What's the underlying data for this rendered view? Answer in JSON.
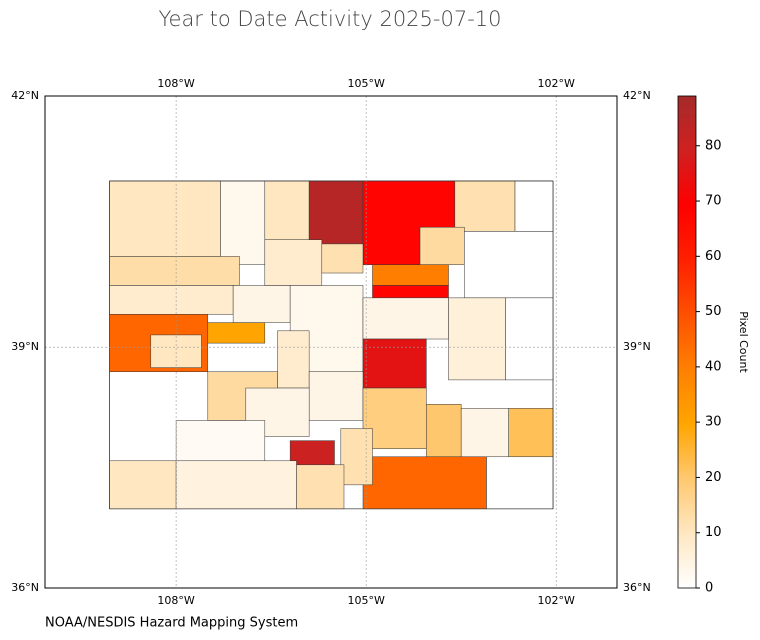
{
  "chart_data": {
    "type": "choropleth",
    "title": "Year to Date Activity 2025-07-10",
    "footer": "NOAA/NESDIS Hazard Mapping System",
    "colorbar_label": "Pixel Count",
    "xlim": [
      -110.07,
      -101.04
    ],
    "ylim": [
      36,
      42
    ],
    "xticks": [
      {
        "value": -108,
        "label": "108°W"
      },
      {
        "value": -105,
        "label": "105°W"
      },
      {
        "value": -102,
        "label": "102°W"
      }
    ],
    "yticks": [
      {
        "value": 42,
        "label": "42°N"
      },
      {
        "value": 39,
        "label": "39°N"
      },
      {
        "value": 36,
        "label": "36°N"
      }
    ],
    "grid": true,
    "clim": [
      0,
      89
    ],
    "cticks": [
      0,
      10,
      20,
      30,
      40,
      50,
      60,
      70,
      80
    ],
    "colormap": [
      "#ffffff",
      "#ffe7c2",
      "#ffc870",
      "#ffa500",
      "#ff8000",
      "#ff5000",
      "#ff2000",
      "#ff0000",
      "#d02020",
      "#a52a2a"
    ],
    "values": [
      10,
      3,
      10,
      85,
      68,
      12,
      0,
      14,
      0,
      13,
      8,
      45,
      10,
      30,
      4,
      8,
      12,
      40,
      68,
      3,
      4,
      6,
      0,
      75,
      8,
      14,
      4,
      18,
      20,
      4,
      22,
      45,
      0,
      12,
      4,
      2,
      80,
      10,
      5,
      12
    ]
  }
}
